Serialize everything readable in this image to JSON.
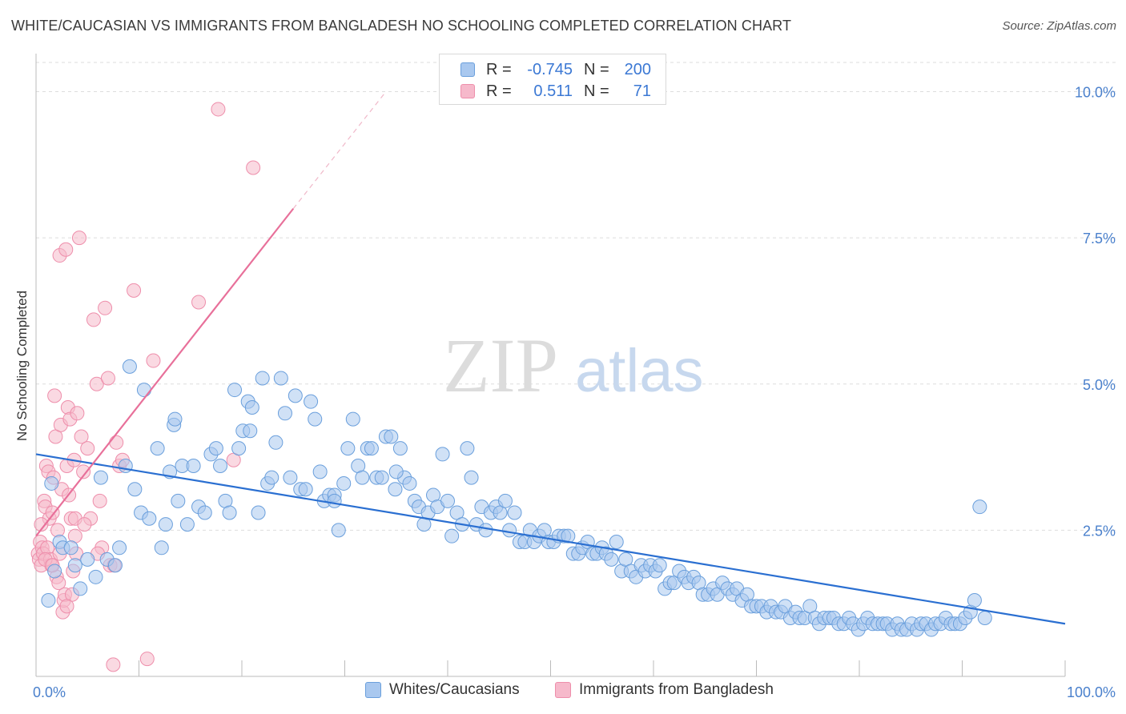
{
  "header": {
    "title": "WHITE/CAUCASIAN VS IMMIGRANTS FROM BANGLADESH NO SCHOOLING COMPLETED CORRELATION CHART",
    "source": "Source: ZipAtlas.com"
  },
  "watermark": {
    "zip": "ZIP",
    "atlas": "atlas"
  },
  "legend": {
    "rows": [
      {
        "r_label": "R =",
        "r_value": "-0.745",
        "n_label": "N =",
        "n_value": "200"
      },
      {
        "r_label": "R =",
        "r_value": "0.511",
        "n_label": "N =",
        "n_value": "71"
      }
    ]
  },
  "bottom_legend": {
    "series1": "Whites/Caucasians",
    "series2": "Immigrants from Bangladesh"
  },
  "colors": {
    "blue_fill": "#a9c8ef",
    "blue_stroke": "#6a9fdc",
    "blue_line": "#2a6fd1",
    "pink_fill": "#f6b9cb",
    "pink_stroke": "#ee8eab",
    "pink_line": "#e8709a",
    "axis_text": "#4a80cc",
    "grid": "#dddddd"
  },
  "chart_data": {
    "type": "scatter",
    "title": "WHITE/CAUCASIAN VS IMMIGRANTS FROM BANGLADESH NO SCHOOLING COMPLETED CORRELATION CHART",
    "xlabel": "",
    "ylabel": "No Schooling Completed",
    "xlim": [
      0,
      100
    ],
    "ylim": [
      0,
      10.5
    ],
    "x_tick_labels": [
      "0.0%",
      "100.0%"
    ],
    "y_ticks": [
      2.5,
      5.0,
      7.5,
      10.0
    ],
    "y_tick_labels": [
      "2.5%",
      "5.0%",
      "7.5%",
      "10.0%"
    ],
    "grid": true,
    "legend_position": "top-center",
    "series": [
      {
        "name": "Whites/Caucasians",
        "R": -0.745,
        "N": 200,
        "trend": {
          "x": [
            0,
            100
          ],
          "y": [
            3.8,
            0.9
          ]
        },
        "points": [
          [
            1.2,
            1.3
          ],
          [
            1.5,
            3.3
          ],
          [
            1.8,
            1.8
          ],
          [
            2.3,
            2.3
          ],
          [
            2.6,
            2.2
          ],
          [
            3.4,
            2.2
          ],
          [
            3.8,
            1.9
          ],
          [
            4.3,
            1.5
          ],
          [
            5.0,
            2.0
          ],
          [
            5.8,
            1.7
          ],
          [
            6.3,
            3.4
          ],
          [
            6.9,
            2.0
          ],
          [
            7.7,
            1.9
          ],
          [
            8.1,
            2.2
          ],
          [
            8.7,
            3.6
          ],
          [
            9.1,
            5.3
          ],
          [
            9.6,
            3.2
          ],
          [
            10.2,
            2.8
          ],
          [
            10.5,
            4.9
          ],
          [
            11.0,
            2.7
          ],
          [
            11.8,
            3.9
          ],
          [
            12.2,
            2.2
          ],
          [
            12.6,
            2.6
          ],
          [
            13.0,
            3.5
          ],
          [
            13.4,
            4.3
          ],
          [
            13.8,
            3.0
          ],
          [
            14.2,
            3.6
          ],
          [
            14.7,
            2.6
          ],
          [
            15.3,
            3.6
          ],
          [
            15.8,
            2.9
          ],
          [
            16.4,
            2.8
          ],
          [
            17.0,
            3.8
          ],
          [
            17.5,
            3.9
          ],
          [
            17.9,
            3.6
          ],
          [
            18.4,
            3.0
          ],
          [
            18.8,
            2.8
          ],
          [
            19.3,
            4.9
          ],
          [
            19.7,
            3.9
          ],
          [
            20.1,
            4.2
          ],
          [
            20.6,
            4.7
          ],
          [
            21.0,
            4.6
          ],
          [
            21.6,
            2.8
          ],
          [
            22.0,
            5.1
          ],
          [
            22.5,
            3.3
          ],
          [
            22.9,
            3.4
          ],
          [
            23.3,
            4.0
          ],
          [
            23.8,
            5.1
          ],
          [
            24.2,
            4.5
          ],
          [
            24.7,
            3.4
          ],
          [
            25.2,
            4.8
          ],
          [
            25.7,
            3.2
          ],
          [
            26.2,
            3.2
          ],
          [
            26.7,
            4.7
          ],
          [
            27.1,
            4.4
          ],
          [
            27.6,
            3.5
          ],
          [
            28.0,
            3.0
          ],
          [
            28.5,
            3.1
          ],
          [
            29.0,
            3.1
          ],
          [
            29.4,
            2.5
          ],
          [
            29.9,
            3.3
          ],
          [
            30.3,
            3.9
          ],
          [
            30.8,
            4.4
          ],
          [
            31.3,
            3.6
          ],
          [
            31.7,
            3.4
          ],
          [
            32.2,
            3.9
          ],
          [
            32.6,
            3.9
          ],
          [
            33.1,
            3.4
          ],
          [
            33.6,
            3.4
          ],
          [
            34.0,
            4.1
          ],
          [
            34.5,
            4.1
          ],
          [
            34.9,
            3.2
          ],
          [
            35.4,
            3.9
          ],
          [
            35.8,
            3.4
          ],
          [
            36.3,
            3.3
          ],
          [
            36.8,
            3.0
          ],
          [
            37.2,
            2.9
          ],
          [
            37.7,
            2.6
          ],
          [
            38.1,
            2.8
          ],
          [
            38.6,
            3.1
          ],
          [
            39.0,
            2.9
          ],
          [
            39.5,
            3.8
          ],
          [
            40.0,
            3.0
          ],
          [
            40.4,
            2.4
          ],
          [
            40.9,
            2.8
          ],
          [
            41.4,
            2.6
          ],
          [
            41.9,
            3.9
          ],
          [
            42.3,
            3.4
          ],
          [
            42.8,
            2.6
          ],
          [
            43.3,
            2.9
          ],
          [
            43.7,
            2.5
          ],
          [
            44.2,
            2.8
          ],
          [
            44.7,
            2.9
          ],
          [
            45.1,
            2.8
          ],
          [
            45.6,
            3.0
          ],
          [
            46.0,
            2.5
          ],
          [
            46.5,
            2.8
          ],
          [
            47.0,
            2.3
          ],
          [
            47.5,
            2.3
          ],
          [
            48.0,
            2.5
          ],
          [
            48.4,
            2.3
          ],
          [
            48.9,
            2.4
          ],
          [
            49.4,
            2.5
          ],
          [
            49.8,
            2.3
          ],
          [
            50.3,
            2.3
          ],
          [
            50.8,
            2.4
          ],
          [
            51.3,
            2.4
          ],
          [
            51.7,
            2.4
          ],
          [
            52.2,
            2.1
          ],
          [
            52.7,
            2.1
          ],
          [
            53.1,
            2.2
          ],
          [
            53.6,
            2.3
          ],
          [
            54.1,
            2.1
          ],
          [
            54.5,
            2.1
          ],
          [
            55.0,
            2.2
          ],
          [
            55.4,
            2.1
          ],
          [
            55.9,
            2.0
          ],
          [
            56.4,
            2.3
          ],
          [
            56.9,
            1.8
          ],
          [
            57.3,
            2.0
          ],
          [
            57.8,
            1.8
          ],
          [
            58.3,
            1.7
          ],
          [
            58.8,
            1.9
          ],
          [
            59.2,
            1.8
          ],
          [
            59.7,
            1.9
          ],
          [
            60.2,
            1.8
          ],
          [
            60.6,
            1.9
          ],
          [
            61.1,
            1.5
          ],
          [
            61.6,
            1.6
          ],
          [
            62.0,
            1.6
          ],
          [
            62.5,
            1.8
          ],
          [
            63.0,
            1.7
          ],
          [
            63.4,
            1.6
          ],
          [
            63.9,
            1.7
          ],
          [
            64.4,
            1.6
          ],
          [
            64.8,
            1.4
          ],
          [
            65.3,
            1.4
          ],
          [
            65.8,
            1.5
          ],
          [
            66.2,
            1.4
          ],
          [
            66.7,
            1.6
          ],
          [
            67.2,
            1.5
          ],
          [
            67.7,
            1.4
          ],
          [
            68.1,
            1.5
          ],
          [
            68.6,
            1.3
          ],
          [
            69.1,
            1.4
          ],
          [
            69.5,
            1.2
          ],
          [
            70.0,
            1.2
          ],
          [
            70.5,
            1.2
          ],
          [
            71.0,
            1.1
          ],
          [
            71.4,
            1.2
          ],
          [
            71.9,
            1.1
          ],
          [
            72.4,
            1.1
          ],
          [
            72.8,
            1.2
          ],
          [
            73.3,
            1.0
          ],
          [
            73.8,
            1.1
          ],
          [
            74.2,
            1.0
          ],
          [
            74.7,
            1.0
          ],
          [
            75.2,
            1.2
          ],
          [
            75.7,
            1.0
          ],
          [
            76.1,
            0.9
          ],
          [
            76.6,
            1.0
          ],
          [
            77.1,
            1.0
          ],
          [
            77.5,
            1.0
          ],
          [
            78.0,
            0.9
          ],
          [
            78.5,
            0.9
          ],
          [
            79.0,
            1.0
          ],
          [
            79.4,
            0.9
          ],
          [
            79.9,
            0.8
          ],
          [
            80.4,
            0.9
          ],
          [
            80.8,
            1.0
          ],
          [
            81.3,
            0.9
          ],
          [
            81.8,
            0.9
          ],
          [
            82.3,
            0.9
          ],
          [
            82.7,
            0.9
          ],
          [
            83.2,
            0.8
          ],
          [
            83.7,
            0.9
          ],
          [
            84.1,
            0.8
          ],
          [
            84.6,
            0.8
          ],
          [
            85.1,
            0.9
          ],
          [
            85.6,
            0.8
          ],
          [
            86.0,
            0.9
          ],
          [
            86.5,
            0.9
          ],
          [
            87.0,
            0.8
          ],
          [
            87.4,
            0.9
          ],
          [
            87.9,
            0.9
          ],
          [
            88.4,
            1.0
          ],
          [
            88.9,
            0.9
          ],
          [
            89.3,
            0.9
          ],
          [
            89.8,
            0.9
          ],
          [
            90.3,
            1.0
          ],
          [
            90.8,
            1.1
          ],
          [
            91.2,
            1.3
          ],
          [
            91.7,
            2.9
          ],
          [
            92.2,
            1.0
          ],
          [
            20.8,
            4.2
          ],
          [
            13.5,
            4.4
          ],
          [
            29.0,
            3.0
          ],
          [
            35.0,
            3.5
          ]
        ]
      },
      {
        "name": "Immigrants from Bangladesh",
        "R": 0.511,
        "N": 71,
        "trend": {
          "x": [
            0,
            25
          ],
          "y": [
            2.4,
            8.0
          ]
        },
        "trend_dashed": {
          "x": [
            25,
            34
          ],
          "y": [
            8.0,
            10.0
          ]
        },
        "points": [
          [
            0.2,
            2.1
          ],
          [
            0.3,
            2.0
          ],
          [
            0.4,
            2.3
          ],
          [
            0.5,
            1.9
          ],
          [
            0.6,
            2.2
          ],
          [
            0.7,
            2.1
          ],
          [
            0.8,
            3.0
          ],
          [
            0.9,
            2.9
          ],
          [
            1.0,
            3.6
          ],
          [
            1.1,
            2.2
          ],
          [
            1.2,
            3.5
          ],
          [
            1.3,
            2.7
          ],
          [
            1.4,
            2.0
          ],
          [
            1.5,
            1.9
          ],
          [
            1.6,
            2.8
          ],
          [
            1.7,
            3.4
          ],
          [
            1.8,
            4.8
          ],
          [
            1.9,
            4.1
          ],
          [
            2.0,
            1.7
          ],
          [
            2.1,
            2.5
          ],
          [
            2.2,
            1.6
          ],
          [
            2.3,
            7.2
          ],
          [
            2.4,
            4.3
          ],
          [
            2.5,
            3.2
          ],
          [
            2.6,
            1.1
          ],
          [
            2.7,
            1.3
          ],
          [
            2.8,
            1.4
          ],
          [
            2.9,
            7.3
          ],
          [
            3.0,
            3.6
          ],
          [
            3.1,
            4.6
          ],
          [
            3.2,
            3.1
          ],
          [
            3.3,
            4.4
          ],
          [
            3.4,
            2.7
          ],
          [
            3.5,
            1.4
          ],
          [
            3.6,
            1.8
          ],
          [
            3.7,
            3.7
          ],
          [
            3.8,
            2.4
          ],
          [
            3.9,
            2.1
          ],
          [
            4.0,
            4.5
          ],
          [
            4.2,
            7.5
          ],
          [
            4.4,
            4.1
          ],
          [
            4.6,
            3.5
          ],
          [
            5.0,
            3.9
          ],
          [
            5.3,
            2.7
          ],
          [
            5.6,
            6.1
          ],
          [
            5.9,
            5.0
          ],
          [
            6.2,
            3.0
          ],
          [
            6.4,
            2.2
          ],
          [
            6.7,
            6.3
          ],
          [
            7.0,
            5.1
          ],
          [
            7.2,
            1.9
          ],
          [
            7.5,
            0.2
          ],
          [
            7.8,
            4.0
          ],
          [
            8.1,
            3.6
          ],
          [
            8.4,
            3.7
          ],
          [
            9.5,
            6.6
          ],
          [
            10.8,
            0.3
          ],
          [
            11.4,
            5.4
          ],
          [
            15.8,
            6.4
          ],
          [
            17.7,
            9.7
          ],
          [
            19.2,
            3.7
          ],
          [
            21.1,
            8.7
          ],
          [
            0.5,
            2.6
          ],
          [
            0.9,
            2.0
          ],
          [
            1.6,
            1.9
          ],
          [
            2.3,
            2.1
          ],
          [
            3.0,
            1.2
          ],
          [
            3.8,
            2.7
          ],
          [
            4.7,
            2.6
          ],
          [
            6.0,
            2.1
          ],
          [
            7.6,
            1.9
          ]
        ]
      }
    ]
  }
}
